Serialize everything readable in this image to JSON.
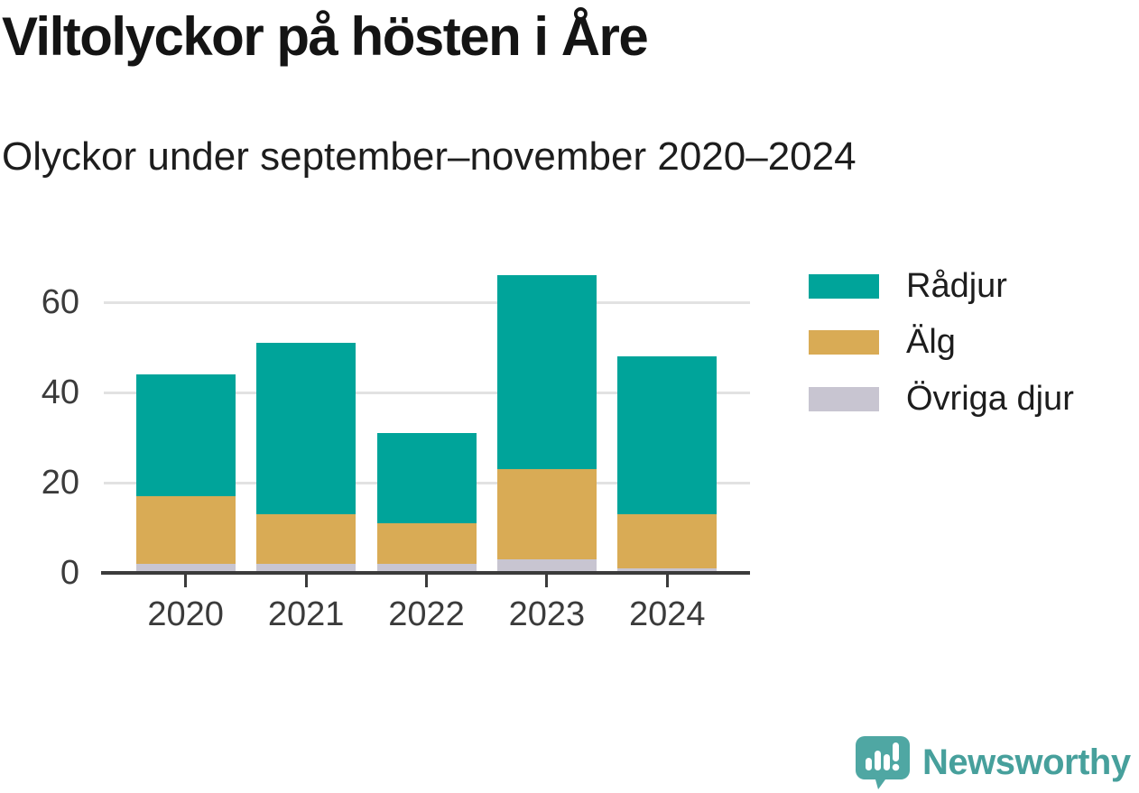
{
  "header": {
    "title": "Viltolyckor på hösten i Åre",
    "subtitle": "Olyckor under september–november 2020–2024"
  },
  "chart_data": {
    "type": "bar",
    "stacked": true,
    "title": "Viltolyckor på hösten i Åre",
    "subtitle": "Olyckor under september–november 2020–2024",
    "categories": [
      "2020",
      "2021",
      "2022",
      "2023",
      "2024"
    ],
    "series": [
      {
        "name": "Rådjur",
        "color": "#00a49a",
        "values": [
          27,
          38,
          20,
          43,
          35
        ]
      },
      {
        "name": "Älg",
        "color": "#d9ab55",
        "values": [
          15,
          11,
          9,
          20,
          12
        ]
      },
      {
        "name": "Övriga djur",
        "color": "#c8c5d1",
        "values": [
          2,
          2,
          2,
          3,
          1
        ]
      }
    ],
    "stack_totals": [
      44,
      51,
      31,
      66,
      48
    ],
    "xlabel": "",
    "ylabel": "",
    "yticks": [
      0,
      20,
      40,
      60
    ],
    "ylim": [
      0,
      66
    ],
    "grid": "horizontal",
    "legend_position": "right"
  },
  "colors": {
    "axis": "#3b3b3b",
    "gridline": "#e2e2e2",
    "title_text": "#141414",
    "brand_teal": "#47a09c"
  },
  "branding": {
    "name": "Newsworthy",
    "logo_icon": "speech-bubble-bar-chart-icon"
  }
}
